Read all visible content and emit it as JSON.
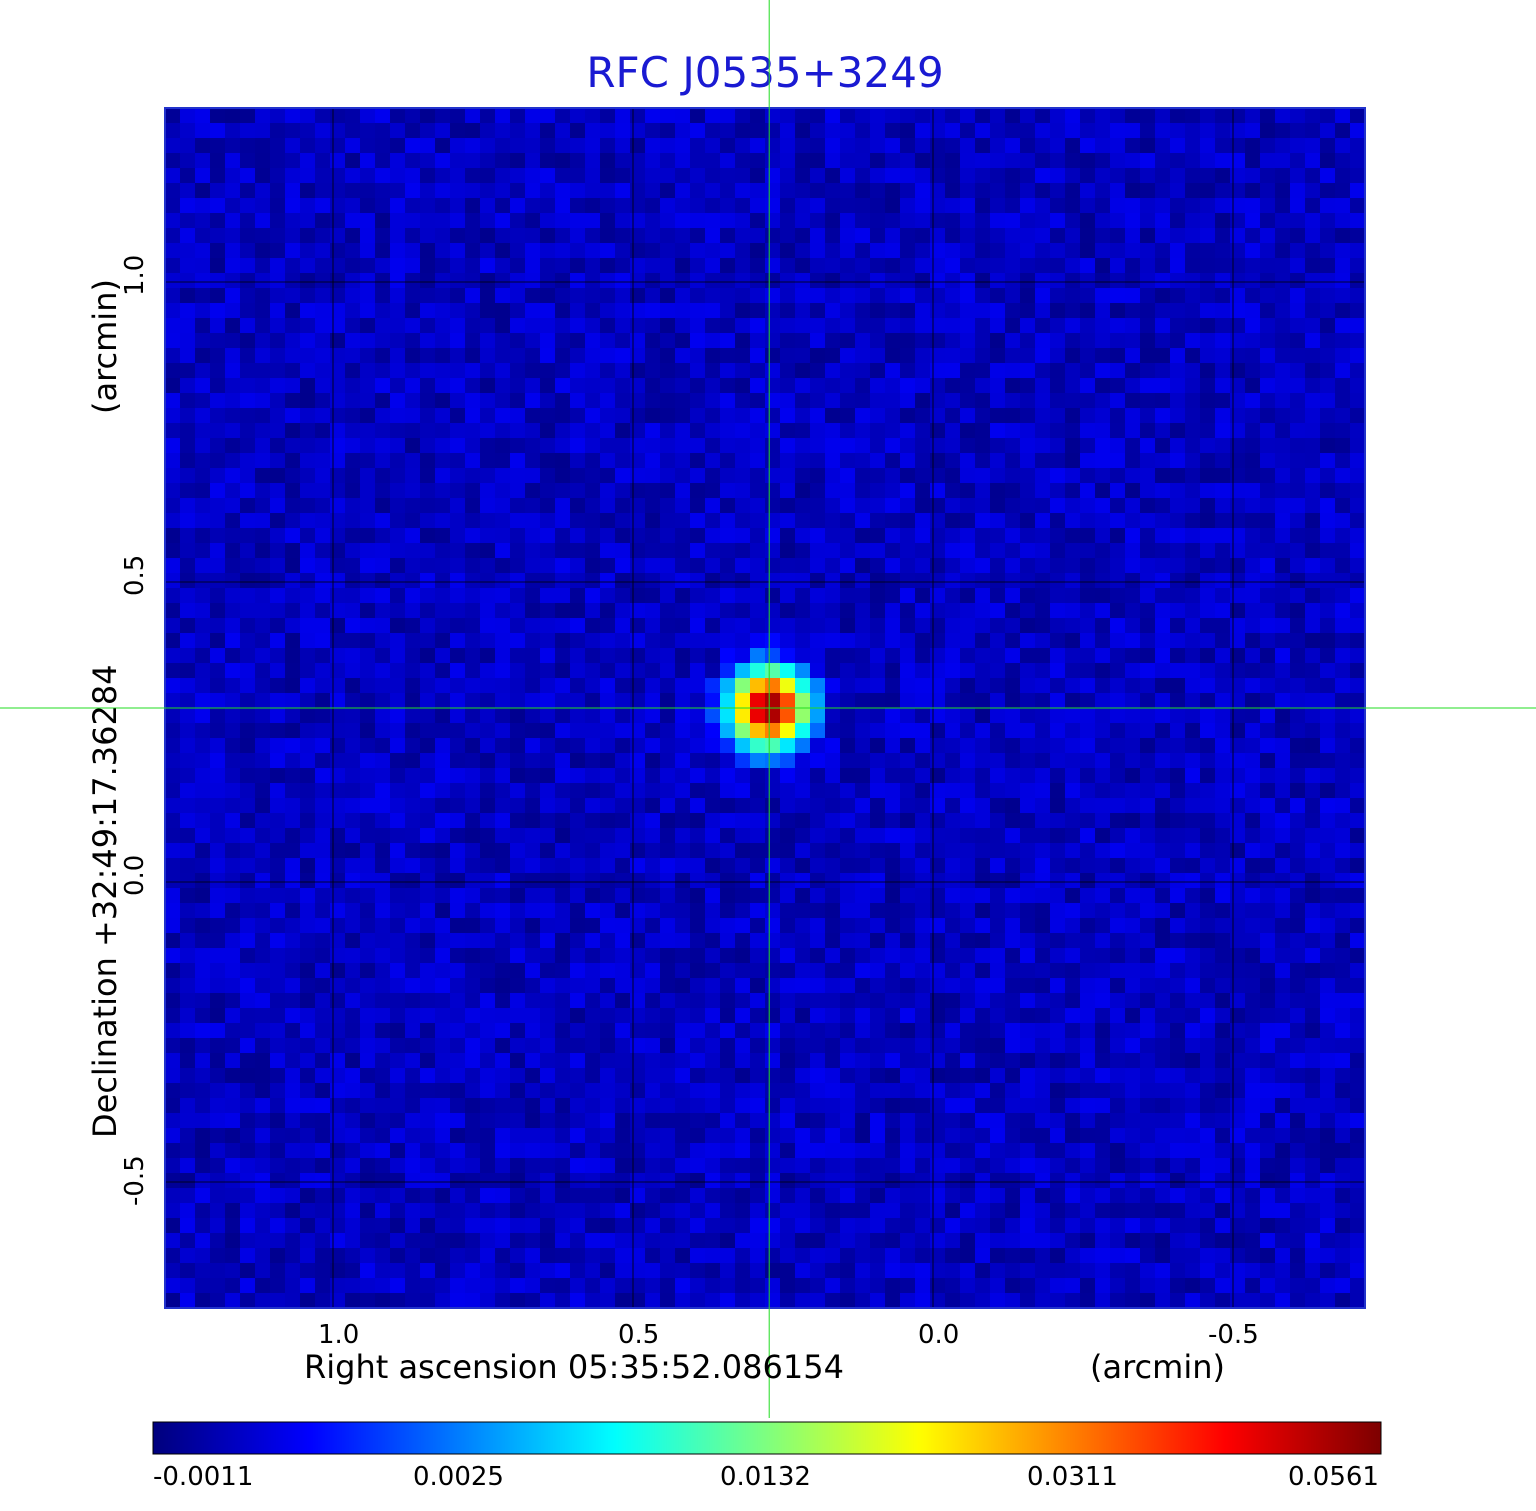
{
  "chart_data": {
    "type": "heatmap",
    "title": "RFC J0535+3249",
    "xlabel": "Right ascension  05:35:52.086154",
    "xlabel_unit": "(arcmin)",
    "ylabel": "Declination  +32:49:17.36284",
    "ylabel_unit": "(arcmin)",
    "x_ticks": [
      1.0,
      0.5,
      0.0,
      -0.5
    ],
    "x_tick_labels": [
      "1.0",
      "0.5",
      "0.0",
      "-0.5"
    ],
    "y_ticks": [
      1.0,
      0.5,
      0.0,
      -0.5
    ],
    "y_tick_labels": [
      "1.0",
      "0.5",
      "0.0",
      "-0.5"
    ],
    "xlim": [
      1.28,
      -0.72
    ],
    "ylim": [
      -0.71,
      1.29
    ],
    "x_axis_reversed": true,
    "grid": true,
    "grid_color": "#000000",
    "crosshair": {
      "x": 0.273,
      "y": 0.29,
      "color": "#22dd22"
    },
    "peak_source": {
      "x": 0.273,
      "y": 0.29,
      "flux": 0.0561
    },
    "colormap": "jet",
    "colorbar": {
      "ticks": [
        -0.0011,
        0.0025,
        0.0132,
        0.0311,
        0.0561
      ],
      "tick_labels": [
        "-0.0011",
        "0.0025",
        "0.0132",
        "0.0311",
        "0.0561"
      ],
      "placement": "bottom"
    },
    "background_level": -0.0002,
    "colors": {
      "title": "#1a1ad2",
      "background_map": "#1f4ff0"
    }
  }
}
